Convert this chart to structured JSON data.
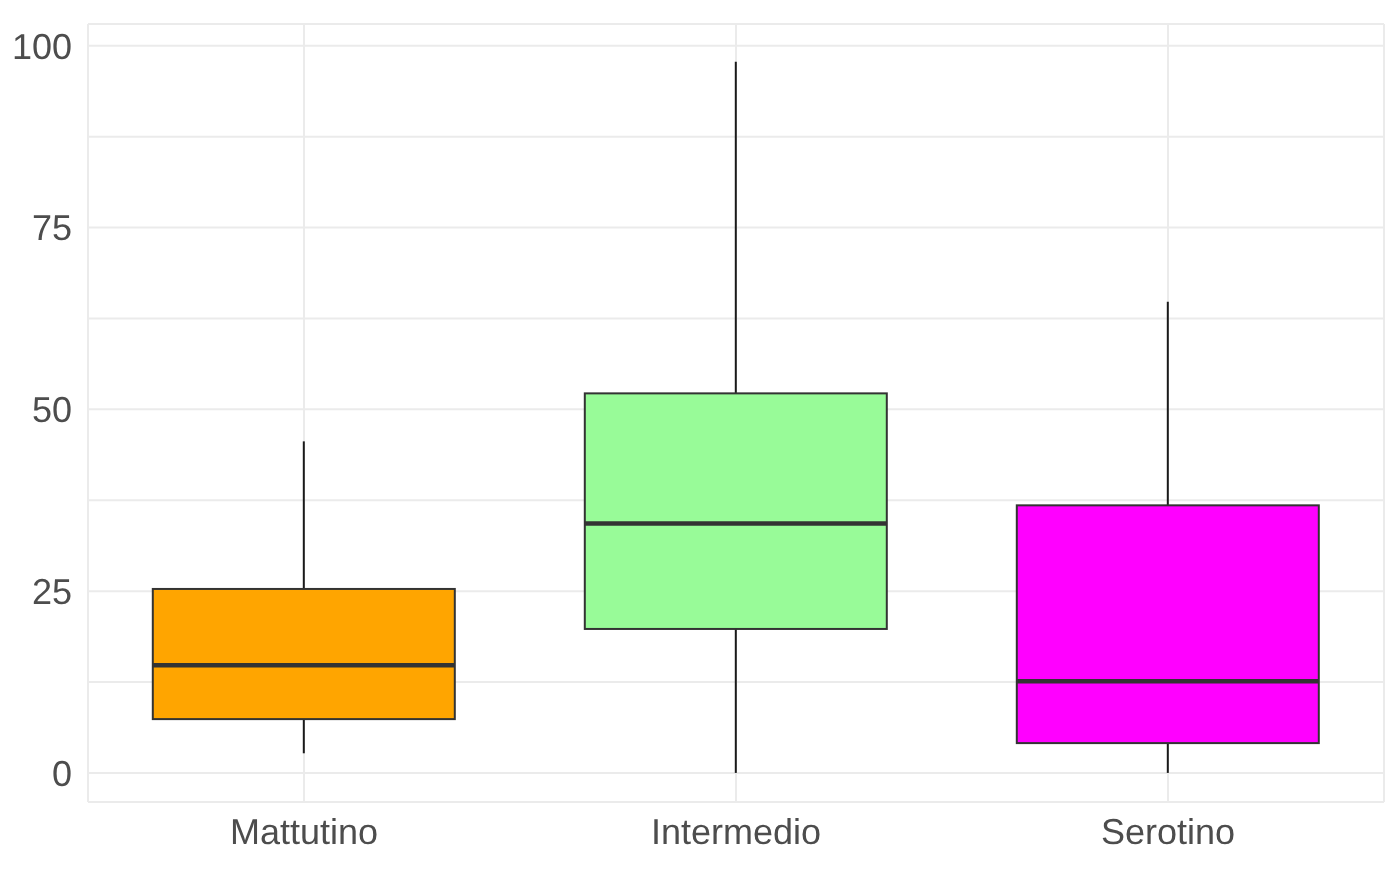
{
  "chart_data": {
    "type": "box",
    "categories": [
      "Mattutino",
      "Intermedio",
      "Serotino"
    ],
    "colors": [
      "#ffa500",
      "#98fb98",
      "#ff00ff"
    ],
    "boxes": [
      {
        "low": 2.7,
        "q1": 7.4,
        "median": 14.8,
        "q3": 25.3,
        "high": 45.6
      },
      {
        "low": 0,
        "q1": 19.8,
        "median": 34.3,
        "q3": 52.2,
        "high": 97.8
      },
      {
        "low": 0,
        "q1": 4.1,
        "median": 12.6,
        "q3": 36.8,
        "high": 64.8
      }
    ],
    "ylim": [
      -4,
      103
    ],
    "yticks": [
      0,
      {
        "value": 12.5,
        "label": null
      },
      25,
      {
        "value": 37.5,
        "label": null
      },
      50,
      {
        "value": 62.5,
        "label": null
      },
      75,
      {
        "value": 87.5,
        "label": null
      },
      100
    ],
    "grid": true
  }
}
